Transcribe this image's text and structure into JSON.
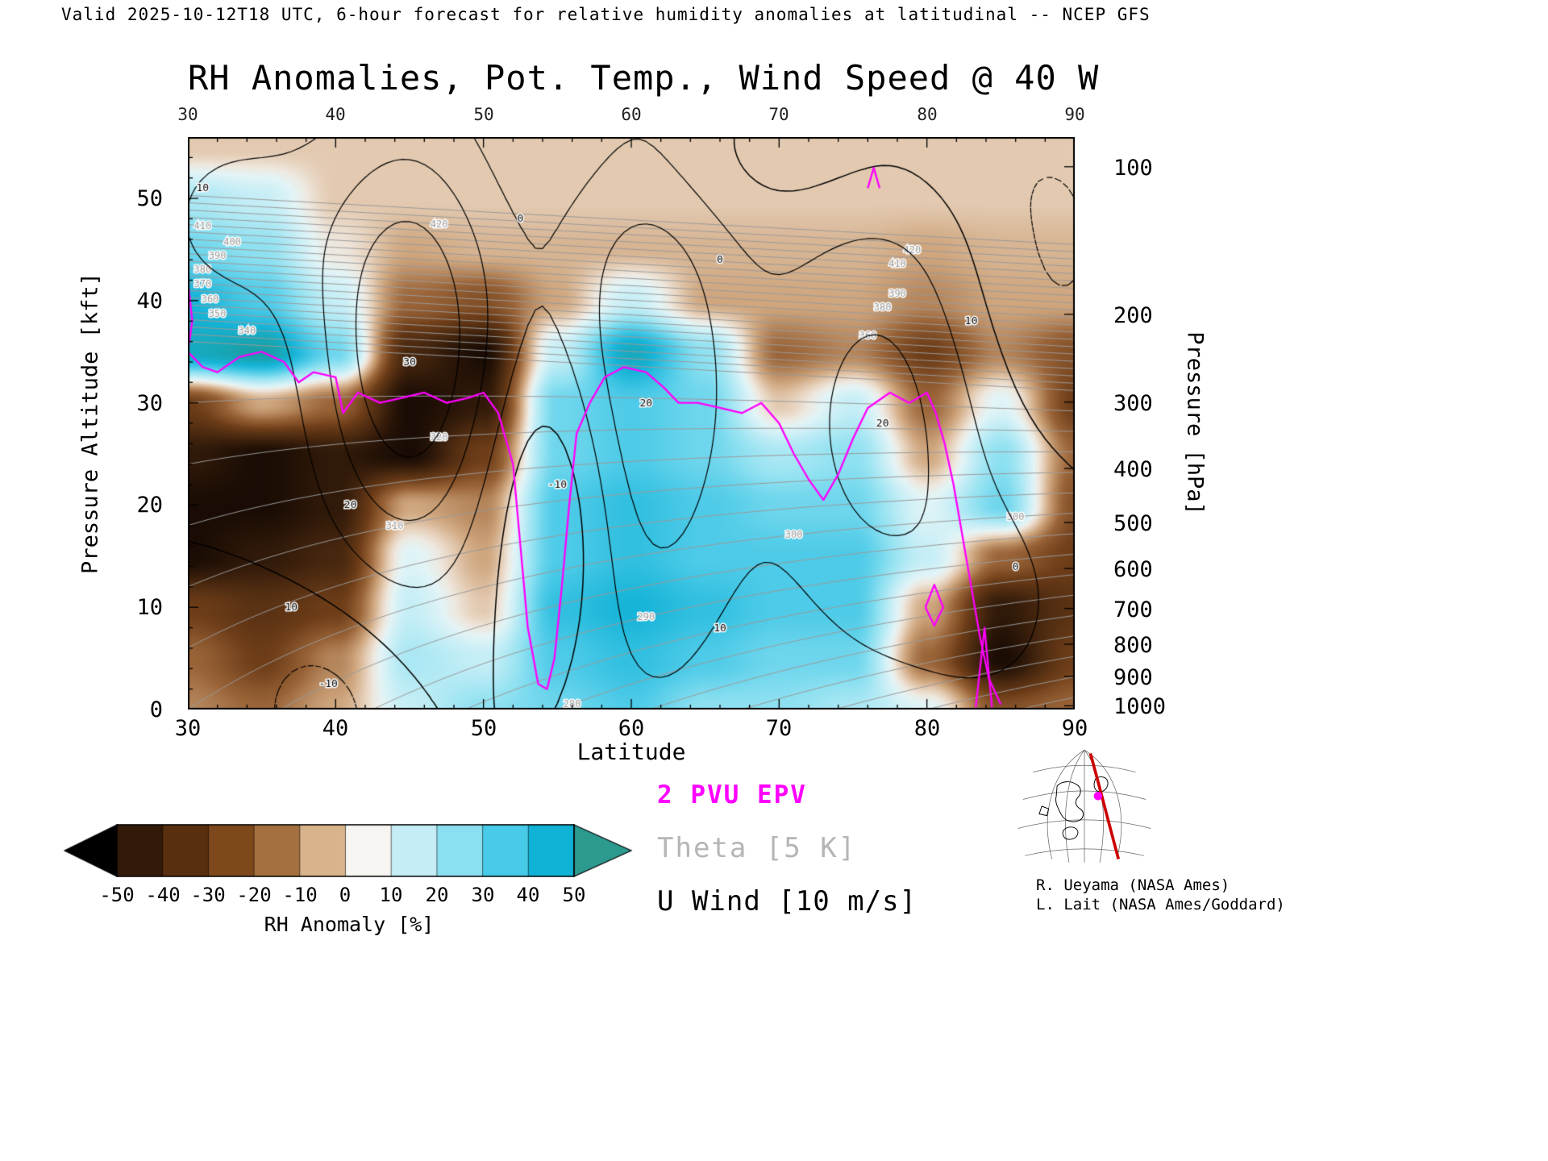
{
  "header": {
    "text": "Valid 2025-10-12T18 UTC, 6-hour forecast for relative humidity anomalies at latitudinal -- NCEP GFS"
  },
  "title": "RH Anomalies, Pot. Temp., Wind Speed @ 40 W",
  "axes": {
    "x": {
      "label": "Latitude",
      "ticks": [
        "30",
        "40",
        "50",
        "60",
        "70",
        "80",
        "90"
      ]
    },
    "y_left": {
      "label": "Pressure Altitude [kft]",
      "ticks": [
        "0",
        "10",
        "20",
        "30",
        "40",
        "50"
      ]
    },
    "y_right": {
      "label": "Pressure [hPa]",
      "ticks": [
        {
          "label": "100",
          "z": 53.1
        },
        {
          "label": "200",
          "z": 38.66
        },
        {
          "label": "300",
          "z": 30.07
        },
        {
          "label": "400",
          "z": 23.58
        },
        {
          "label": "500",
          "z": 18.29
        },
        {
          "label": "600",
          "z": 13.8
        },
        {
          "label": "700",
          "z": 9.88
        },
        {
          "label": "800",
          "z": 6.39
        },
        {
          "label": "900",
          "z": 3.24
        },
        {
          "label": "1000",
          "z": 0.36
        }
      ]
    }
  },
  "legend": {
    "pvu": "2 PVU EPV",
    "pvu_color": "#ff00ff",
    "theta": "Theta [5 K]",
    "theta_color": "#b5b5b5",
    "uwind": "U Wind [10 m/s]",
    "uwind_color": "#000000"
  },
  "colorbar": {
    "labels": [
      "-50",
      "-40",
      "-30",
      "-20",
      "-10",
      "0",
      "10",
      "20",
      "30",
      "40",
      "50"
    ],
    "caption": "RH Anomaly [%]",
    "arrow_left": "#000000",
    "arrow_right": "#2d9a8f",
    "segments": [
      "#331a08",
      "#59300f",
      "#7d481c",
      "#a5703f",
      "#d8b38c",
      "#f6f5f2",
      "#c5edf6",
      "#8adff1",
      "#47cbe8",
      "#10b2d6"
    ]
  },
  "credits": [
    "R. Ueyama (NASA Ames)",
    "L. Lait (NASA Ames/Goddard)"
  ],
  "inset_map": {
    "meridian_color": "#cc0000",
    "marker_color": "#ff00ff"
  },
  "chart_data": {
    "type": "heatmap",
    "title": "RH Anomalies, Pot. Temp., Wind Speed @ 40 W",
    "xlabel": "Latitude",
    "ylabel_left": "Pressure Altitude [kft]",
    "ylabel_right": "Pressure [hPa]",
    "x_range": [
      30,
      90
    ],
    "y_range": [
      0,
      56
    ],
    "units": "RH anomaly percent",
    "heatmap": {
      "lats": [
        30,
        35,
        40,
        45,
        50,
        55,
        60,
        65,
        70,
        75,
        80,
        85,
        90
      ],
      "alts": [
        0,
        5,
        10,
        15,
        20,
        25,
        30,
        35,
        40,
        45,
        50,
        55
      ],
      "values": [
        [
          -15,
          -20,
          -10,
          10,
          20,
          25,
          30,
          20,
          20,
          15,
          5,
          -25,
          -20
        ],
        [
          -20,
          -30,
          -15,
          15,
          10,
          30,
          35,
          30,
          25,
          25,
          -20,
          -50,
          -30
        ],
        [
          -30,
          -35,
          -30,
          10,
          -5,
          35,
          40,
          35,
          30,
          30,
          -10,
          -45,
          -35
        ],
        [
          -50,
          -45,
          -40,
          5,
          -10,
          30,
          35,
          30,
          30,
          30,
          10,
          -20,
          -30
        ],
        [
          -50,
          -50,
          -45,
          -10,
          -15,
          30,
          35,
          30,
          25,
          25,
          5,
          25,
          -25
        ],
        [
          -45,
          -50,
          -45,
          -50,
          -30,
          25,
          30,
          25,
          15,
          20,
          -10,
          20,
          -20
        ],
        [
          -30,
          -10,
          -20,
          -50,
          -45,
          25,
          30,
          25,
          -5,
          10,
          -20,
          5,
          -30
        ],
        [
          45,
          50,
          25,
          -40,
          -50,
          10,
          45,
          20,
          -20,
          -15,
          -30,
          -15,
          -25
        ],
        [
          40,
          30,
          10,
          -20,
          -25,
          -10,
          10,
          -10,
          -10,
          -10,
          -15,
          -10,
          -10
        ],
        [
          25,
          20,
          0,
          -10,
          -8,
          -8,
          -8,
          -8,
          -8,
          -8,
          -10,
          -8,
          -8
        ],
        [
          15,
          10,
          -5,
          -5,
          -5,
          -5,
          -5,
          -5,
          -5,
          -5,
          -5,
          -5,
          -5
        ],
        [
          -5,
          -5,
          -5,
          -5,
          -5,
          -5,
          -5,
          -5,
          -5,
          -5,
          -5,
          -5,
          -5
        ]
      ]
    },
    "color_stops": [
      [
        -60,
        "#000000"
      ],
      [
        -50,
        "#1a0c04"
      ],
      [
        -40,
        "#47270f"
      ],
      [
        -30,
        "#6d3d18"
      ],
      [
        -20,
        "#9a6438"
      ],
      [
        -10,
        "#cfa67e"
      ],
      [
        -4,
        "#e6d0ba"
      ],
      [
        0,
        "#eee8df"
      ],
      [
        4,
        "#e3f4f6"
      ],
      [
        10,
        "#c6eef6"
      ],
      [
        20,
        "#8fe1f1"
      ],
      [
        30,
        "#4ecbe8"
      ],
      [
        40,
        "#16b4d8"
      ],
      [
        50,
        "#18a0a6"
      ],
      [
        60,
        "#2a8f82"
      ]
    ],
    "overlays": {
      "theta": {
        "color": "#9a9a9a",
        "contour_interval_K": 5,
        "min": 255,
        "max": 430,
        "step": 5,
        "trop_z0": 36,
        "trop_slope": -0.08,
        "sfc_theta0": 300,
        "sfc_slope": -0.8,
        "trop_theta": 330,
        "strat_lapse": 7,
        "labels": [
          {
            "level": 280,
            "lat": 56
          },
          {
            "level": 290,
            "lat": 61
          },
          {
            "level": 300,
            "lat": 71
          },
          {
            "level": 310,
            "lat": 44
          },
          {
            "level": 320,
            "lat": 47
          },
          {
            "level": 340,
            "lat": 34
          },
          {
            "level": 350,
            "lat": 32
          },
          {
            "level": 360,
            "lat": 31.5
          },
          {
            "level": 370,
            "lat": 31
          },
          {
            "level": 380,
            "lat": 31
          },
          {
            "level": 390,
            "lat": 32
          },
          {
            "level": 400,
            "lat": 33
          },
          {
            "level": 410,
            "lat": 31
          },
          {
            "level": 420,
            "lat": 47
          },
          {
            "level": 420,
            "lat": 79
          },
          {
            "level": 410,
            "lat": 78
          },
          {
            "level": 390,
            "lat": 78
          },
          {
            "level": 380,
            "lat": 77
          },
          {
            "level": 360,
            "lat": 76
          },
          {
            "level": 300,
            "lat": 86
          }
        ]
      },
      "u_wind": {
        "color": "#000000",
        "contour_interval_ms": 10,
        "levels": [
          -20,
          -10,
          0,
          10,
          20,
          30
        ],
        "components": [
          {
            "amp": 40,
            "lat0": 45,
            "slat": 4.5,
            "z0": 36,
            "sz": 15
          },
          {
            "amp": 30,
            "lat0": 61,
            "slat": 4.5,
            "z0": 32,
            "sz": 20
          },
          {
            "amp": 24,
            "lat0": 77,
            "slat": 5.5,
            "z0": 28,
            "sz": 16
          },
          {
            "amp": -18,
            "lat0": 55,
            "slat": 3.2,
            "z0": 20,
            "sz": 11
          },
          {
            "amp": -14,
            "lat0": 39,
            "slat": 4,
            "z0": 0,
            "sz": 7
          },
          {
            "amp": 12,
            "lat0": 33,
            "slat": 5,
            "z0": 48,
            "sz": 8
          },
          {
            "amp": -12,
            "lat0": 88,
            "slat": 5,
            "z0": 44,
            "sz": 12
          },
          {
            "amp": -8,
            "lat0": 70,
            "slat": 10,
            "z0": 54,
            "sz": 5
          },
          {
            "amp": 10,
            "lat0": 85,
            "slat": 4,
            "z0": 10,
            "sz": 8
          }
        ],
        "labels": [
          {
            "t": "30",
            "lat": 45,
            "z": 34
          },
          {
            "t": "20",
            "lat": 41,
            "z": 20
          },
          {
            "t": "10",
            "lat": 37,
            "z": 10
          },
          {
            "t": "0",
            "lat": 52.5,
            "z": 48
          },
          {
            "t": "0",
            "lat": 66,
            "z": 44
          },
          {
            "t": "-10",
            "lat": 55,
            "z": 22
          },
          {
            "t": "20",
            "lat": 61,
            "z": 30
          },
          {
            "t": "10",
            "lat": 66,
            "z": 8
          },
          {
            "t": "20",
            "lat": 77,
            "z": 28
          },
          {
            "t": "10",
            "lat": 83,
            "z": 38
          },
          {
            "t": "-10",
            "lat": 39.5,
            "z": 2.5
          },
          {
            "t": "10",
            "lat": 31,
            "z": 51
          },
          {
            "t": "0",
            "lat": 86,
            "z": 14
          }
        ]
      },
      "pvu": {
        "color": "#ff00ff",
        "value_pvu": 2,
        "lines": [
          [
            [
              30,
              42
            ],
            [
              30.3,
              38
            ],
            [
              30,
              35
            ],
            [
              31,
              33.5
            ],
            [
              32,
              33
            ],
            [
              33.5,
              34.5
            ],
            [
              35,
              35
            ],
            [
              36.5,
              34
            ],
            [
              37.5,
              32
            ],
            [
              38.5,
              33
            ],
            [
              40,
              32.5
            ],
            [
              40.5,
              29
            ],
            [
              41.5,
              31
            ],
            [
              43,
              30
            ],
            [
              44.5,
              30.5
            ],
            [
              46,
              31
            ],
            [
              47.5,
              30
            ],
            [
              49,
              30.5
            ],
            [
              50,
              31
            ],
            [
              51,
              29
            ],
            [
              52,
              24
            ],
            [
              52.5,
              16
            ],
            [
              53,
              8
            ],
            [
              53.7,
              2.5
            ],
            [
              54.3,
              2
            ],
            [
              54.8,
              5
            ],
            [
              55.3,
              12
            ],
            [
              55.8,
              20
            ],
            [
              56.3,
              27
            ],
            [
              57.2,
              30
            ],
            [
              58.2,
              32.5
            ],
            [
              59.5,
              33.5
            ],
            [
              61,
              33
            ],
            [
              62.2,
              31.5
            ],
            [
              63.2,
              30
            ],
            [
              64.5,
              30
            ],
            [
              66,
              29.5
            ],
            [
              67.5,
              29
            ],
            [
              68.8,
              30
            ],
            [
              70,
              28
            ],
            [
              71,
              25
            ],
            [
              72,
              22.5
            ],
            [
              73,
              20.5
            ],
            [
              74,
              23
            ],
            [
              75,
              26.5
            ],
            [
              76,
              29.5
            ],
            [
              77.5,
              31
            ],
            [
              78.8,
              30
            ],
            [
              80,
              31
            ],
            [
              80.6,
              29
            ],
            [
              81.2,
              26
            ],
            [
              81.8,
              22
            ],
            [
              82.4,
              17
            ],
            [
              83,
              12
            ],
            [
              83.6,
              7
            ],
            [
              84.2,
              3
            ],
            [
              85,
              0.5
            ]
          ],
          [
            [
              79.9,
              10
            ],
            [
              80.5,
              12.2
            ],
            [
              81.1,
              10
            ],
            [
              80.5,
              8.2
            ],
            [
              79.9,
              10
            ]
          ],
          [
            [
              83.3,
              0.2
            ],
            [
              83.9,
              8
            ],
            [
              84.4,
              0.2
            ]
          ],
          [
            [
              76,
              51
            ],
            [
              76.4,
              53
            ],
            [
              76.8,
              51
            ]
          ]
        ]
      }
    }
  }
}
